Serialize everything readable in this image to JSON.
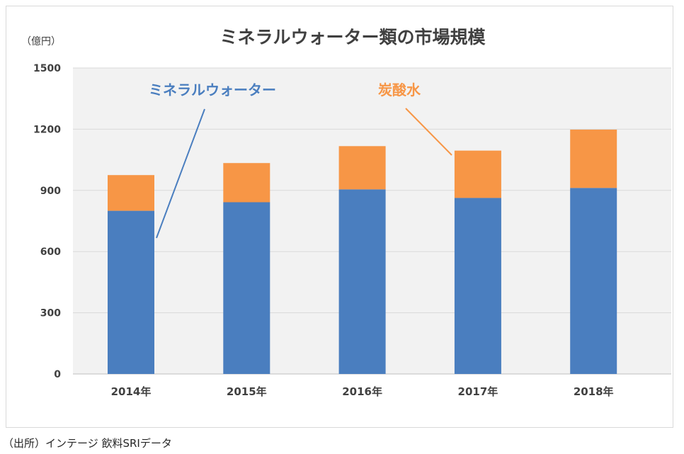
{
  "chart_data": {
    "type": "bar",
    "stacked": true,
    "title": "ミネラルウォーター類の市場規模",
    "unit_label": "（億円）",
    "categories": [
      "2014年",
      "2015年",
      "2016年",
      "2017年",
      "2018年"
    ],
    "series": [
      {
        "name": "ミネラルウォーター",
        "values": [
          800,
          842,
          905,
          863,
          912
        ],
        "color": "#4a7ebf"
      },
      {
        "name": "炭酸水",
        "values": [
          175,
          192,
          212,
          232,
          286
        ],
        "color": "#f79646"
      }
    ],
    "ylim": [
      0,
      1500
    ],
    "yticks": [
      0,
      300,
      600,
      900,
      1200,
      1500
    ],
    "grid": true,
    "legend": "annotations-in-plot",
    "plot_background": "#f2f2f2",
    "gridline_color": "#d9d9d9"
  },
  "source_note": "（出所）インテージ 飲料SRIデータ"
}
